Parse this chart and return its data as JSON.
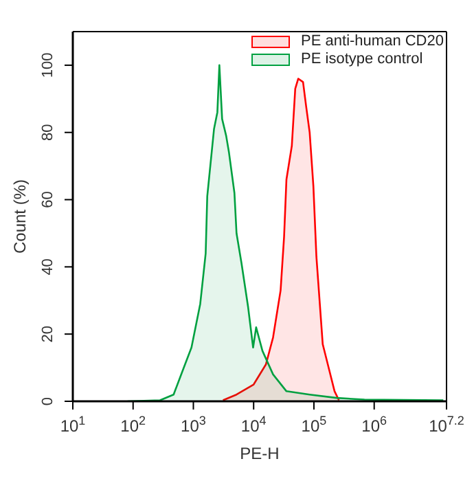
{
  "chart_data": {
    "type": "area",
    "xlabel": "PE-H",
    "ylabel": "Count  (%)",
    "log": "x",
    "xlim": [
      10,
      15848932
    ],
    "xticks": [
      {
        "value": 10,
        "label": "10$^{1}$"
      },
      {
        "value": 100,
        "label": "10$^{2}$"
      },
      {
        "value": 1000,
        "label": "10$^{3}$"
      },
      {
        "value": 10000,
        "label": "10$^{4}$"
      },
      {
        "value": 100000,
        "label": "10$^{5}$"
      },
      {
        "value": 1000000,
        "label": "10$^{6}$"
      },
      {
        "value": 15848932,
        "label": "10$^{7.2}$"
      }
    ],
    "ylim": [
      0,
      110
    ],
    "yticks": [
      0,
      20,
      40,
      60,
      80,
      100
    ],
    "grid": false,
    "legend": "top right",
    "series": [
      {
        "name": "PE anti-human CD20",
        "color": "#ff0000",
        "x": [
          3100,
          5200,
          10000,
          16000,
          21000,
          28000,
          32000,
          35000,
          43000,
          49000,
          55000,
          66000,
          74000,
          85000,
          98000,
          110000,
          140000,
          170000,
          220000,
          260000
        ],
        "values": [
          0.3,
          2,
          5,
          11,
          19,
          33,
          49,
          66,
          76,
          93,
          96,
          95,
          88,
          80,
          64,
          43,
          17,
          11,
          3,
          0.3
        ]
      },
      {
        "name": "PE isotype control",
        "color": "#00a040",
        "x": [
          81,
          280,
          470,
          660,
          930,
          1300,
          1600,
          1700,
          2200,
          2500,
          2700,
          3000,
          3500,
          3900,
          4800,
          5200,
          6300,
          8100,
          9800,
          11000,
          14000,
          21000,
          35000,
          85000,
          240000,
          690000,
          14000000
        ],
        "values": [
          0,
          0.3,
          2,
          9,
          16,
          29,
          44,
          61,
          81,
          86,
          100,
          84,
          79,
          74,
          62,
          50,
          41,
          28,
          16,
          22,
          15,
          8,
          3,
          2,
          1,
          0.5,
          0.3
        ]
      }
    ]
  }
}
